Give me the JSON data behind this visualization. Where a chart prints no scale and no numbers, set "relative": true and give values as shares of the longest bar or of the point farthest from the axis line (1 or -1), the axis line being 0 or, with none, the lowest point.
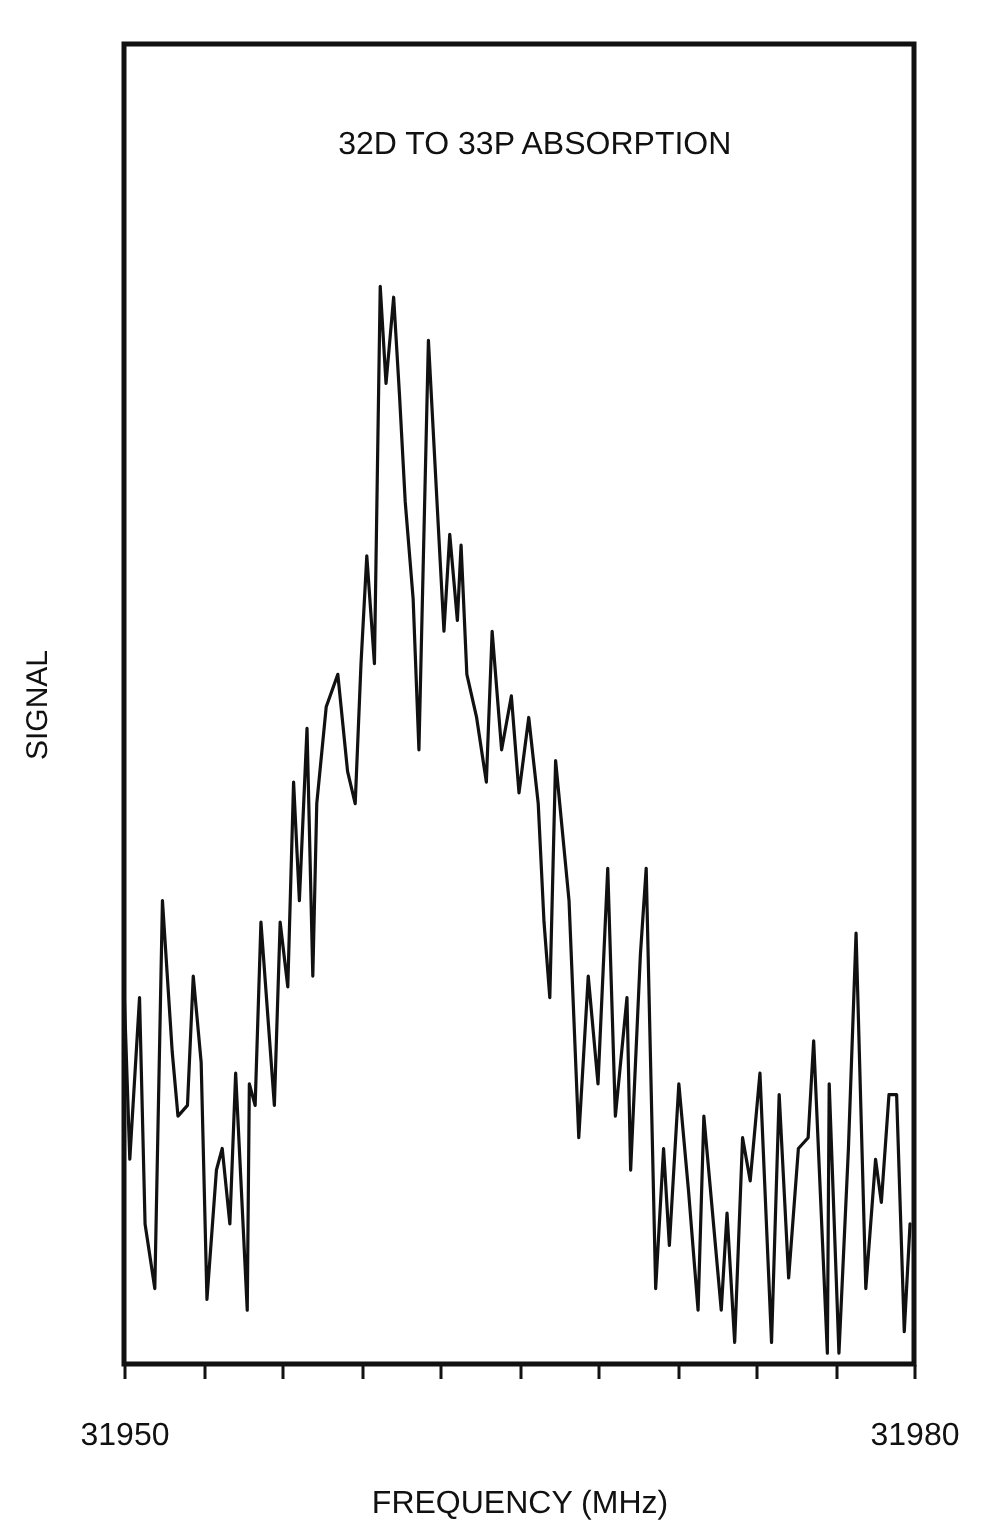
{
  "chart_data": {
    "type": "line",
    "relative": true,
    "xlabel": "FREQUENCY (MHz)",
    "ylabel": "SIGNAL",
    "annotations": [
      "32D TO 33P ABSORPTION"
    ],
    "xlim": [
      31950,
      31980
    ],
    "xticks": [
      31950,
      {
        "value": 31953,
        "label": null
      },
      {
        "value": 31956,
        "label": null
      },
      {
        "value": 31959,
        "label": null
      },
      {
        "value": 31962,
        "label": null
      },
      {
        "value": 31965,
        "label": null
      },
      {
        "value": 31968,
        "label": null
      },
      {
        "value": 31971,
        "label": null
      },
      {
        "value": 31974,
        "label": null
      },
      {
        "value": 31977,
        "label": null
      },
      31980
    ],
    "series": [
      {
        "color": "#111111",
        "x": [
          31950.0,
          31950.22,
          31950.59,
          31950.8,
          31951.17,
          31951.46,
          31951.83,
          31952.05,
          31952.41,
          31952.63,
          31952.93,
          31953.15,
          31953.51,
          31953.73,
          31954.02,
          31954.24,
          31954.68,
          31954.76,
          31954.98,
          31955.2,
          31955.71,
          31955.93,
          31956.22,
          31956.44,
          31956.66,
          31956.95,
          31957.17,
          31957.32,
          31957.68,
          31958.12,
          31958.49,
          31958.78,
          31959.0,
          31959.22,
          31959.51,
          31959.73,
          31959.95,
          31960.24,
          31960.46,
          31960.68,
          31960.98,
          31961.2,
          31961.56,
          31961.93,
          31962.15,
          31962.37,
          31962.66,
          31962.8,
          31963.02,
          31963.39,
          31963.76,
          31963.98,
          31964.34,
          31964.71,
          31965.0,
          31965.37,
          31965.73,
          31965.95,
          31966.17,
          31966.39,
          31966.9,
          31967.27,
          31967.63,
          31968.0,
          31968.37,
          31968.66,
          31969.1,
          31969.24,
          31969.61,
          31969.83,
          31970.19,
          31970.49,
          31970.71,
          31971.07,
          31971.44,
          31971.8,
          31972.02,
          31972.68,
          31972.9,
          31973.19,
          31973.49,
          31973.78,
          31974.15,
          31974.59,
          31974.88,
          31975.24,
          31975.61,
          31975.98,
          31976.19,
          31976.71,
          31976.78,
          31977.15,
          31977.51,
          31977.8,
          31978.17,
          31978.54,
          31978.76,
          31979.05,
          31979.34,
          31979.63,
          31979.85
        ],
        "values": [
          0.35,
          0.19,
          0.34,
          0.13,
          0.07,
          0.43,
          0.29,
          0.23,
          0.24,
          0.36,
          0.28,
          0.06,
          0.18,
          0.2,
          0.13,
          0.27,
          0.05,
          0.26,
          0.24,
          0.41,
          0.24,
          0.41,
          0.35,
          0.54,
          0.43,
          0.59,
          0.36,
          0.52,
          0.61,
          0.64,
          0.55,
          0.52,
          0.65,
          0.75,
          0.65,
          1.0,
          0.91,
          0.99,
          0.9,
          0.8,
          0.71,
          0.57,
          0.95,
          0.78,
          0.68,
          0.77,
          0.69,
          0.76,
          0.64,
          0.6,
          0.54,
          0.68,
          0.57,
          0.62,
          0.53,
          0.6,
          0.52,
          0.41,
          0.34,
          0.56,
          0.43,
          0.21,
          0.36,
          0.26,
          0.46,
          0.23,
          0.34,
          0.18,
          0.38,
          0.46,
          0.07,
          0.2,
          0.11,
          0.26,
          0.16,
          0.05,
          0.23,
          0.05,
          0.14,
          0.02,
          0.21,
          0.17,
          0.27,
          0.02,
          0.25,
          0.08,
          0.2,
          0.21,
          0.3,
          0.01,
          0.26,
          0.01,
          0.2,
          0.4,
          0.07,
          0.19,
          0.15,
          0.25,
          0.25,
          0.03,
          0.13
        ]
      }
    ]
  }
}
